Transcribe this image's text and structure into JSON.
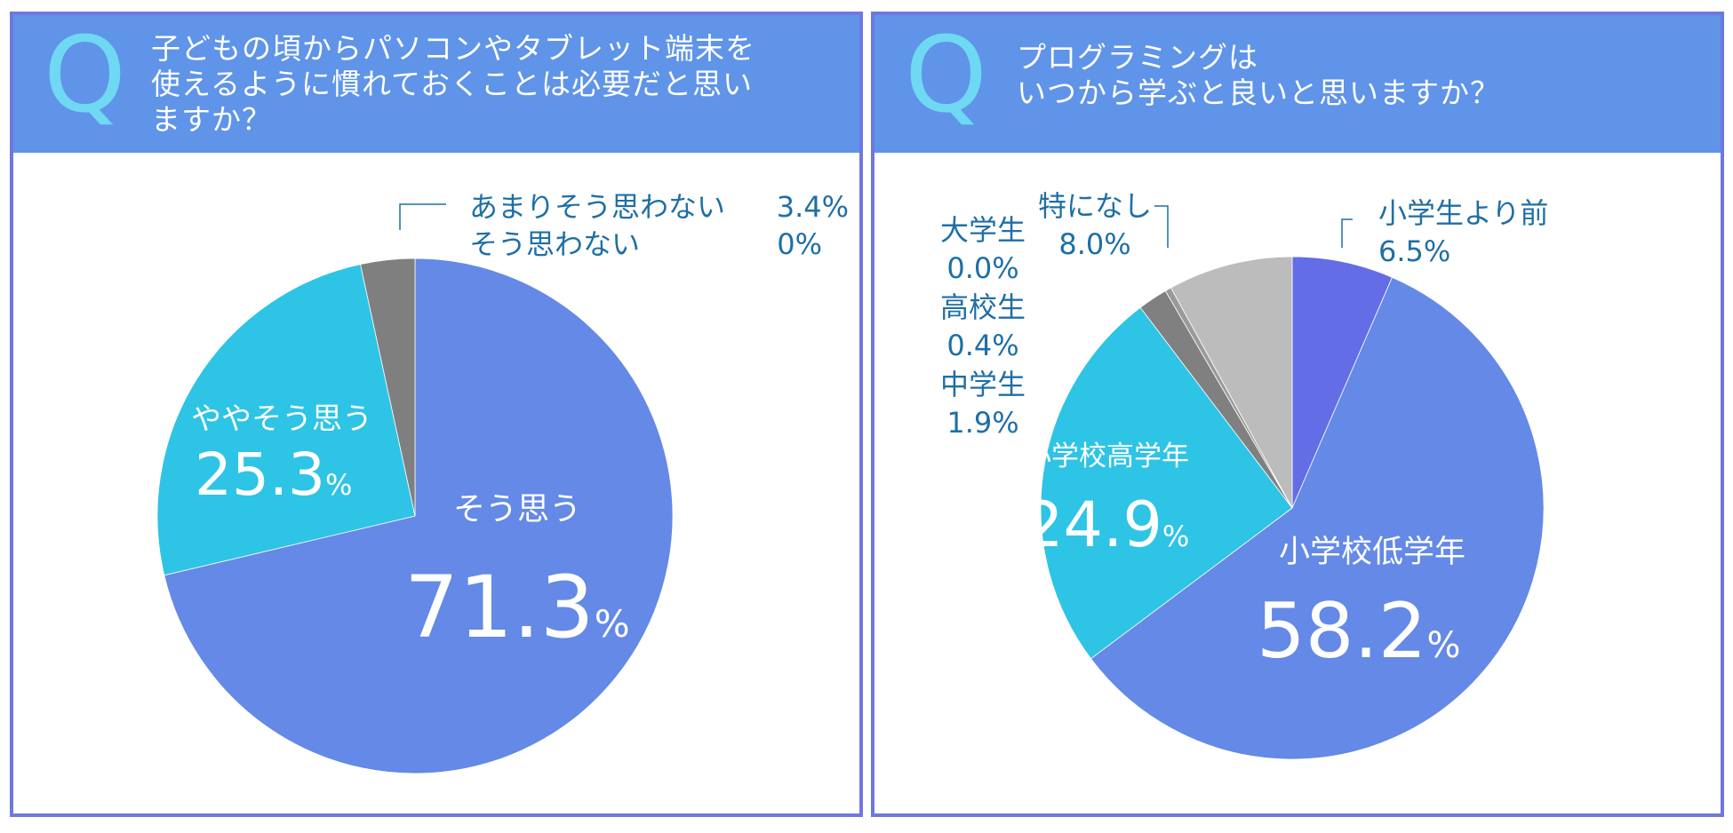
{
  "panels": [
    {
      "q_mark": "Q",
      "question_lines": [
        "子どもの頃からパソコンやタブレット端末を",
        "使えるように慣れておくことは必要だと思い",
        "ますか？"
      ],
      "inside_labels": [
        {
          "name": "そう思う",
          "value": "71.3",
          "unit": "%"
        },
        {
          "name": "ややそう思う",
          "value": "25.3",
          "unit": "%"
        }
      ],
      "outside_labels": [
        {
          "name": "あまりそう思わない",
          "value": "3.4%"
        },
        {
          "name": "そう思わない",
          "value": "0%"
        }
      ]
    },
    {
      "q_mark": "Q",
      "question_lines": [
        "プログラミングは",
        "いつから学ぶと良いと思いますか？"
      ],
      "inside_labels": [
        {
          "name": "小学校低学年",
          "value": "58.2",
          "unit": "%"
        },
        {
          "name": "小学校高学年",
          "value": "24.9",
          "unit": "%"
        }
      ],
      "outside_labels": [
        {
          "name": "小学生より前",
          "value": "6.5%"
        },
        {
          "name": "特になし",
          "value": "8.0%"
        },
        {
          "name": "大学生",
          "value": "0.0%"
        },
        {
          "name": "高校生",
          "value": "0.4%"
        },
        {
          "name": "中学生",
          "value": "1.9%"
        }
      ]
    }
  ],
  "chart_data": [
    {
      "type": "pie",
      "title": "子どもの頃からパソコンやタブレット端末を使えるように慣れておくことは必要だと思いますか？",
      "categories": [
        "そう思う",
        "ややそう思う",
        "あまりそう思わない",
        "そう思わない"
      ],
      "values": [
        71.3,
        25.3,
        3.4,
        0
      ],
      "colors": [
        "#6489e6",
        "#2ec4e5",
        "#7f7f7f",
        "#a6a6a6"
      ],
      "start": "12 o'clock",
      "direction": "clockwise",
      "unit": "%"
    },
    {
      "type": "pie",
      "title": "プログラミングはいつから学ぶと良いと思いますか？",
      "categories": [
        "小学生より前",
        "小学校低学年",
        "小学校高学年",
        "中学生",
        "高校生",
        "大学生",
        "特になし"
      ],
      "values": [
        6.5,
        58.2,
        24.9,
        1.9,
        0.4,
        0.0,
        8.0
      ],
      "colors": [
        "#636de6",
        "#6489e6",
        "#2ec4e5",
        "#808080",
        "#9a9a9a",
        "#aaaaaa",
        "#bcbcbc"
      ],
      "start": "12 o'clock",
      "direction": "clockwise",
      "unit": "%"
    }
  ]
}
